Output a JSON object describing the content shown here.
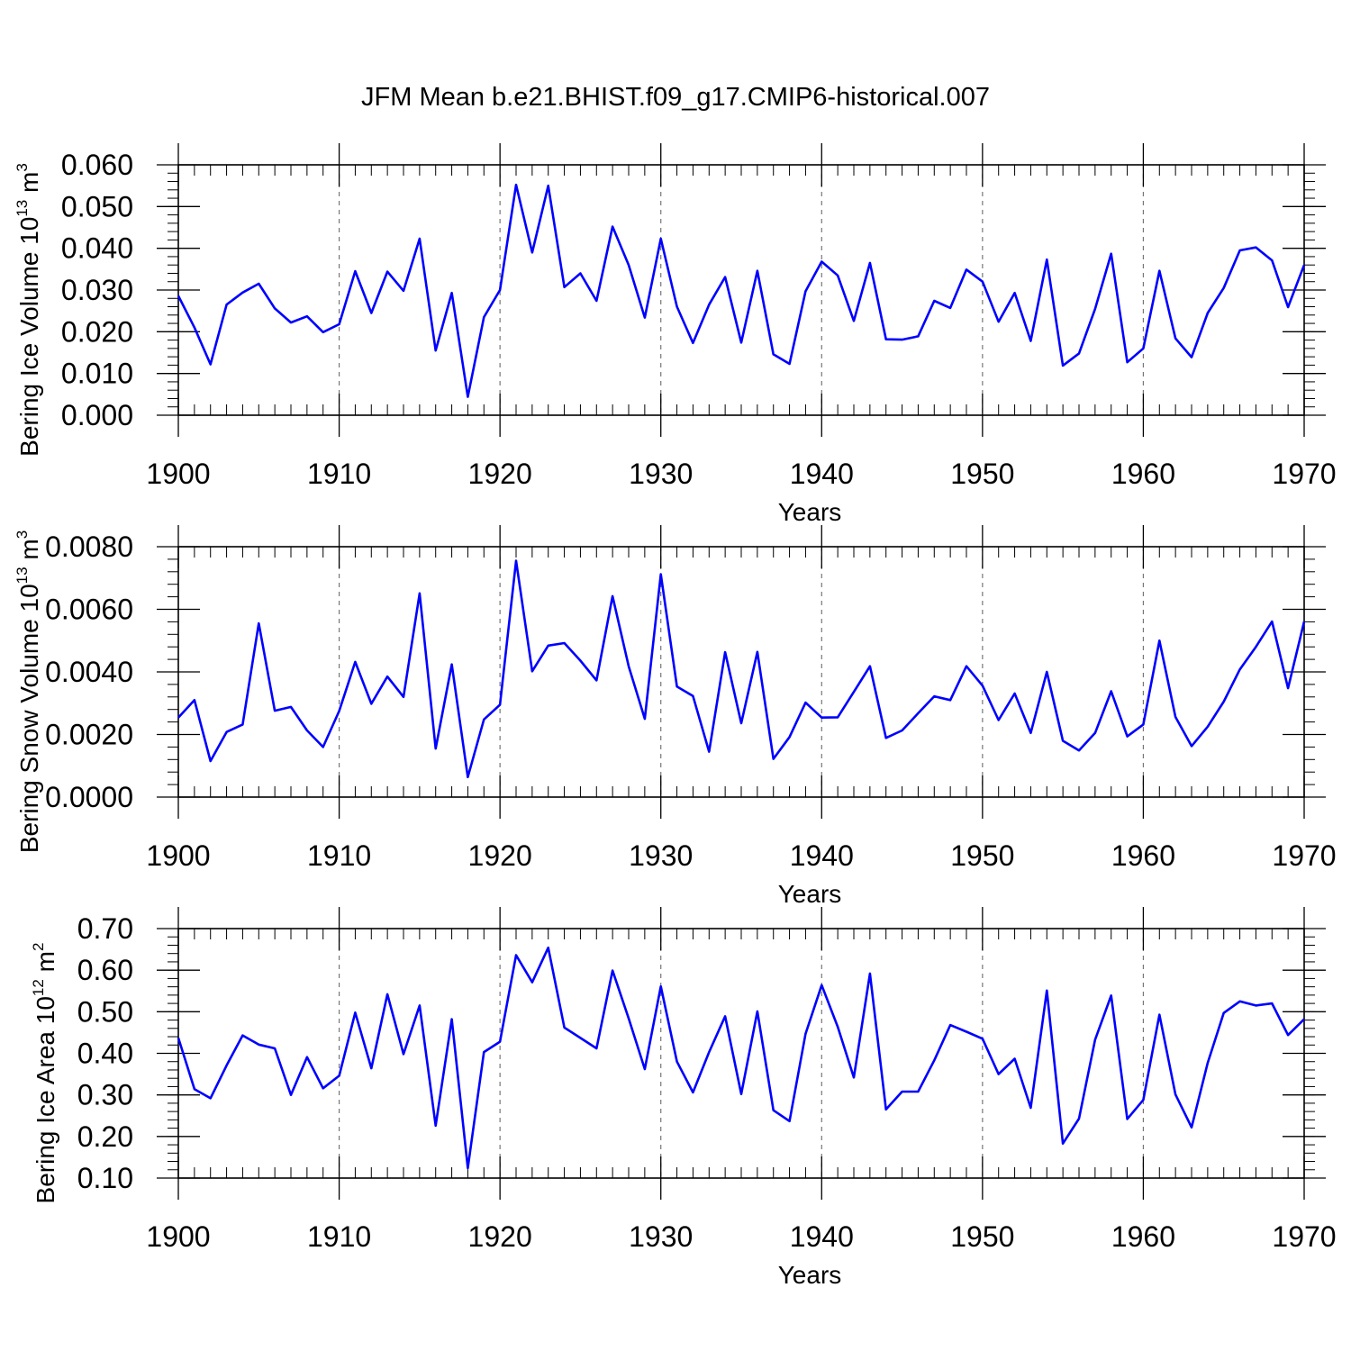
{
  "title": "JFM Mean b.e21.BHIST.f09_g17.CMIP6-historical.007",
  "colors": {
    "series": "#0000ff",
    "axis": "#000000",
    "grid": "#777777"
  },
  "chart_data": [
    {
      "type": "line",
      "ylabel": "Bering Ice Volume 10",
      "ylabel_exp": "13",
      "ylabel_unit": " m",
      "ylabel_unit_exp": "3",
      "xlabel": "Years",
      "xlim": [
        1900,
        1970
      ],
      "ylim": [
        0.0,
        0.06
      ],
      "yticks": [
        "0.000",
        "0.010",
        "0.020",
        "0.030",
        "0.040",
        "0.050",
        "0.060"
      ],
      "yminor_step": 0.002,
      "xticks": [
        "1900",
        "1910",
        "1920",
        "1930",
        "1940",
        "1950",
        "1960",
        "1970"
      ],
      "grid": "vertical dashed at major x ticks",
      "x": [
        1900,
        1901,
        1902,
        1903,
        1904,
        1905,
        1906,
        1907,
        1908,
        1909,
        1910,
        1911,
        1912,
        1913,
        1914,
        1915,
        1916,
        1917,
        1918,
        1919,
        1920,
        1921,
        1922,
        1923,
        1924,
        1925,
        1926,
        1927,
        1928,
        1929,
        1930,
        1931,
        1932,
        1933,
        1934,
        1935,
        1936,
        1937,
        1938,
        1939,
        1940,
        1941,
        1942,
        1943,
        1944,
        1945,
        1946,
        1947,
        1948,
        1949,
        1950,
        1951,
        1952,
        1953,
        1954,
        1955,
        1956,
        1957,
        1958,
        1959,
        1960,
        1961,
        1962,
        1963,
        1964,
        1965,
        1966,
        1967,
        1968,
        1969,
        1970
      ],
      "values": [
        0.0286,
        0.021,
        0.0122,
        0.0265,
        0.0294,
        0.0315,
        0.0256,
        0.0222,
        0.0237,
        0.0199,
        0.0218,
        0.0345,
        0.0245,
        0.0344,
        0.0298,
        0.0423,
        0.0155,
        0.0293,
        0.0044,
        0.0235,
        0.03,
        0.0552,
        0.039,
        0.055,
        0.0307,
        0.034,
        0.0274,
        0.0452,
        0.036,
        0.0234,
        0.0423,
        0.026,
        0.0173,
        0.0265,
        0.0331,
        0.0174,
        0.0346,
        0.0146,
        0.0123,
        0.0297,
        0.0368,
        0.0335,
        0.0226,
        0.0365,
        0.0182,
        0.0181,
        0.0189,
        0.0274,
        0.0257,
        0.0349,
        0.032,
        0.0224,
        0.0293,
        0.0178,
        0.0373,
        0.0119,
        0.0148,
        0.0255,
        0.0387,
        0.0127,
        0.016,
        0.0346,
        0.0184,
        0.0139,
        0.0245,
        0.0305,
        0.0395,
        0.0402,
        0.0371,
        0.0259,
        0.036
      ]
    },
    {
      "type": "line",
      "ylabel": "Bering Snow Volume 10",
      "ylabel_exp": "13",
      "ylabel_unit": " m",
      "ylabel_unit_exp": "3",
      "xlabel": "Years",
      "xlim": [
        1900,
        1970
      ],
      "ylim": [
        0.0,
        0.008
      ],
      "yticks": [
        "0.0000",
        "0.0020",
        "0.0040",
        "0.0060",
        "0.0080"
      ],
      "yminor_step": 0.0004,
      "xticks": [
        "1900",
        "1910",
        "1920",
        "1930",
        "1940",
        "1950",
        "1960",
        "1970"
      ],
      "grid": "vertical dashed at major x ticks",
      "x": [
        1900,
        1901,
        1902,
        1903,
        1904,
        1905,
        1906,
        1907,
        1908,
        1909,
        1910,
        1911,
        1912,
        1913,
        1914,
        1915,
        1916,
        1917,
        1918,
        1919,
        1920,
        1921,
        1922,
        1923,
        1924,
        1925,
        1926,
        1927,
        1928,
        1929,
        1930,
        1931,
        1932,
        1933,
        1934,
        1935,
        1936,
        1937,
        1938,
        1939,
        1940,
        1941,
        1942,
        1943,
        1944,
        1945,
        1946,
        1947,
        1948,
        1949,
        1950,
        1951,
        1952,
        1953,
        1954,
        1955,
        1956,
        1957,
        1958,
        1959,
        1960,
        1961,
        1962,
        1963,
        1964,
        1965,
        1966,
        1967,
        1968,
        1969,
        1970
      ],
      "values": [
        0.00254,
        0.0031,
        0.00115,
        0.00208,
        0.00232,
        0.00555,
        0.00276,
        0.00288,
        0.00213,
        0.0016,
        0.00275,
        0.00432,
        0.00298,
        0.00385,
        0.0032,
        0.00651,
        0.00155,
        0.00424,
        0.00064,
        0.00248,
        0.00295,
        0.00755,
        0.00402,
        0.00484,
        0.00492,
        0.00436,
        0.00373,
        0.00642,
        0.00418,
        0.0025,
        0.00712,
        0.00353,
        0.00323,
        0.00145,
        0.00463,
        0.00236,
        0.00464,
        0.00122,
        0.00192,
        0.00302,
        0.00254,
        0.00255,
        0.00336,
        0.00418,
        0.00189,
        0.00213,
        0.00268,
        0.00322,
        0.0031,
        0.00418,
        0.00356,
        0.00246,
        0.00331,
        0.00205,
        0.004,
        0.0018,
        0.00149,
        0.00205,
        0.00338,
        0.00194,
        0.00232,
        0.005,
        0.00256,
        0.00163,
        0.00225,
        0.00305,
        0.00408,
        0.0048,
        0.00561,
        0.00348,
        0.00561
      ]
    },
    {
      "type": "line",
      "ylabel": "Bering Ice Area 10",
      "ylabel_exp": "12",
      "ylabel_unit": " m",
      "ylabel_unit_exp": "2",
      "xlabel": "Years",
      "xlim": [
        1900,
        1970
      ],
      "ylim": [
        0.1,
        0.7
      ],
      "yticks": [
        "0.10",
        "0.20",
        "0.30",
        "0.40",
        "0.50",
        "0.60",
        "0.70"
      ],
      "yminor_step": 0.02,
      "xticks": [
        "1900",
        "1910",
        "1920",
        "1930",
        "1940",
        "1950",
        "1960",
        "1970"
      ],
      "grid": "vertical dashed at major x ticks",
      "x": [
        1900,
        1901,
        1902,
        1903,
        1904,
        1905,
        1906,
        1907,
        1908,
        1909,
        1910,
        1911,
        1912,
        1913,
        1914,
        1915,
        1916,
        1917,
        1918,
        1919,
        1920,
        1921,
        1922,
        1923,
        1924,
        1925,
        1926,
        1927,
        1928,
        1929,
        1930,
        1931,
        1932,
        1933,
        1934,
        1935,
        1936,
        1937,
        1938,
        1939,
        1940,
        1941,
        1942,
        1943,
        1944,
        1945,
        1946,
        1947,
        1948,
        1949,
        1950,
        1951,
        1952,
        1953,
        1954,
        1955,
        1956,
        1957,
        1958,
        1959,
        1960,
        1961,
        1962,
        1963,
        1964,
        1965,
        1966,
        1967,
        1968,
        1969,
        1970
      ],
      "values": [
        0.437,
        0.314,
        0.292,
        0.371,
        0.443,
        0.421,
        0.412,
        0.3,
        0.391,
        0.316,
        0.346,
        0.498,
        0.364,
        0.542,
        0.398,
        0.515,
        0.226,
        0.482,
        0.124,
        0.403,
        0.428,
        0.636,
        0.571,
        0.654,
        0.462,
        0.437,
        0.412,
        0.599,
        0.484,
        0.362,
        0.561,
        0.38,
        0.306,
        0.403,
        0.489,
        0.302,
        0.501,
        0.263,
        0.237,
        0.447,
        0.564,
        0.464,
        0.342,
        0.592,
        0.265,
        0.308,
        0.308,
        0.383,
        0.468,
        0.452,
        0.435,
        0.35,
        0.387,
        0.269,
        0.551,
        0.183,
        0.243,
        0.433,
        0.539,
        0.242,
        0.288,
        0.493,
        0.301,
        0.222,
        0.377,
        0.497,
        0.525,
        0.515,
        0.52,
        0.444,
        0.482
      ]
    }
  ]
}
